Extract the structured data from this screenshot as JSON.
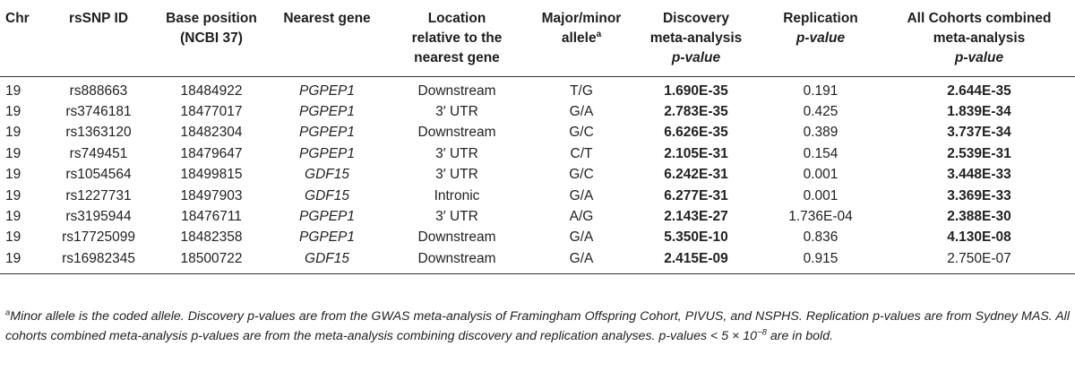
{
  "headers": [
    {
      "key": "chr",
      "lines": [
        "Chr"
      ]
    },
    {
      "key": "rsid",
      "lines": [
        "rsSNP ID"
      ]
    },
    {
      "key": "base",
      "lines": [
        "Base position",
        "(NCBI 37)"
      ]
    },
    {
      "key": "gene",
      "lines": [
        "Nearest gene"
      ]
    },
    {
      "key": "location",
      "lines": [
        "Location",
        "relative to the",
        "nearest gene"
      ]
    },
    {
      "key": "allele",
      "lines": [
        "Major/minor",
        "allele"
      ],
      "sup": "a"
    },
    {
      "key": "discovery",
      "lines": [
        "Discovery",
        "meta-analysis",
        "p-value"
      ]
    },
    {
      "key": "replication",
      "lines": [
        "Replication",
        "p-value"
      ]
    },
    {
      "key": "combined",
      "lines": [
        "All Cohorts combined",
        "meta-analysis",
        "p-value"
      ]
    }
  ],
  "rows": [
    {
      "chr": "19",
      "rsid": "rs888663",
      "base": "18484922",
      "gene": "PGPEP1",
      "location": "Downstream",
      "allele": "T/G",
      "discovery": "1.690E-35",
      "discovery_bold": true,
      "replication": "0.191",
      "combined": "2.644E-35",
      "combined_bold": true
    },
    {
      "chr": "19",
      "rsid": "rs3746181",
      "base": "18477017",
      "gene": "PGPEP1",
      "location": "3′ UTR",
      "allele": "G/A",
      "discovery": "2.783E-35",
      "discovery_bold": true,
      "replication": "0.425",
      "combined": "1.839E-34",
      "combined_bold": true
    },
    {
      "chr": "19",
      "rsid": "rs1363120",
      "base": "18482304",
      "gene": "PGPEP1",
      "location": "Downstream",
      "allele": "G/C",
      "discovery": "6.626E-35",
      "discovery_bold": true,
      "replication": "0.389",
      "combined": "3.737E-34",
      "combined_bold": true
    },
    {
      "chr": "19",
      "rsid": "rs749451",
      "base": "18479647",
      "gene": "PGPEP1",
      "location": "3′ UTR",
      "allele": "C/T",
      "discovery": "2.105E-31",
      "discovery_bold": true,
      "replication": "0.154",
      "combined": "2.539E-31",
      "combined_bold": true
    },
    {
      "chr": "19",
      "rsid": "rs1054564",
      "base": "18499815",
      "gene": "GDF15",
      "location": "3′ UTR",
      "allele": "G/C",
      "discovery": "6.242E-31",
      "discovery_bold": true,
      "replication": "0.001",
      "combined": "3.448E-33",
      "combined_bold": true
    },
    {
      "chr": "19",
      "rsid": "rs1227731",
      "base": "18497903",
      "gene": "GDF15",
      "location": "Intronic",
      "allele": "G/A",
      "discovery": "6.277E-31",
      "discovery_bold": true,
      "replication": "0.001",
      "combined": "3.369E-33",
      "combined_bold": true
    },
    {
      "chr": "19",
      "rsid": "rs3195944",
      "base": "18476711",
      "gene": "PGPEP1",
      "location": "3′ UTR",
      "allele": "A/G",
      "discovery": "2.143E-27",
      "discovery_bold": true,
      "replication": "1.736E-04",
      "combined": "2.388E-30",
      "combined_bold": true
    },
    {
      "chr": "19",
      "rsid": "rs17725099",
      "base": "18482358",
      "gene": "PGPEP1",
      "location": "Downstream",
      "allele": "G/A",
      "discovery": "5.350E-10",
      "discovery_bold": true,
      "replication": "0.836",
      "combined": "4.130E-08",
      "combined_bold": true
    },
    {
      "chr": "19",
      "rsid": "rs16982345",
      "base": "18500722",
      "gene": "GDF15",
      "location": "Downstream",
      "allele": "G/A",
      "discovery": "2.415E-09",
      "discovery_bold": true,
      "replication": "0.915",
      "combined": "2.750E-07",
      "combined_bold": false
    }
  ],
  "footnote": {
    "marker": "a",
    "text_before": "Minor allele is the coded allele. Discovery p-values are from the GWAS meta-analysis of Framingham Offspring Cohort, PIVUS, and NSPHS. Replication p-values are from Sydney MAS. All cohorts combined meta-analysis p-values are from the meta-analysis combining discovery and replication analyses. p-values < 5 × 10",
    "exponent": "−8",
    "text_after": " are in bold."
  }
}
